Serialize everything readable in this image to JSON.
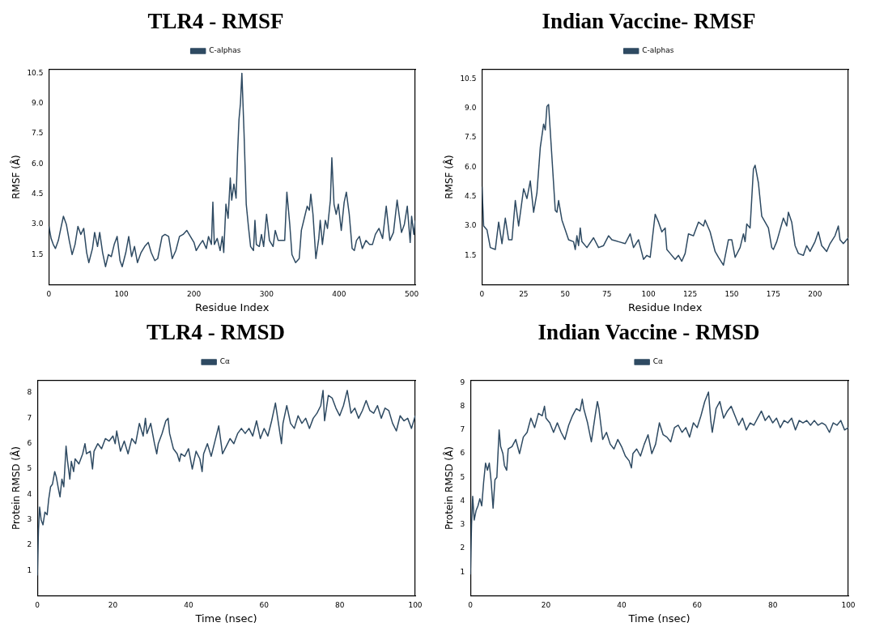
{
  "chart_data": [
    {
      "type": "line",
      "title": "TLR4 - RMSF",
      "xlabel": "Residue Index",
      "ylabel": "RMSF (Å)",
      "legend": "top",
      "grid": false,
      "xlim": [
        0,
        505
      ],
      "xticks": [
        0,
        100,
        200,
        300,
        400,
        500
      ],
      "ylim": [
        0,
        10.7
      ],
      "yticks": [
        1.5,
        {
          "value": 3,
          "label": "3.0"
        },
        4.5,
        {
          "value": 6,
          "label": "6.0"
        },
        7.5,
        {
          "value": 9,
          "label": "9.0"
        },
        10.5
      ],
      "x": [
        0,
        3,
        6,
        9,
        13,
        17,
        20,
        24,
        28,
        32,
        36,
        40,
        44,
        48,
        52,
        55,
        60,
        63,
        67,
        70,
        74,
        78,
        82,
        86,
        90,
        94,
        98,
        101,
        106,
        110,
        114,
        118,
        122,
        127,
        132,
        137,
        141,
        146,
        150,
        156,
        160,
        165,
        170,
        175,
        180,
        185,
        190,
        195,
        200,
        203,
        208,
        212,
        217,
        220,
        224,
        226,
        228,
        232,
        236,
        239,
        241,
        244,
        247,
        250,
        252,
        255,
        258,
        260,
        262,
        264,
        266,
        269,
        272,
        275,
        278,
        282,
        284,
        286,
        290,
        293,
        296,
        300,
        304,
        309,
        312,
        316,
        320,
        325,
        328,
        332,
        335,
        340,
        345,
        348,
        352,
        356,
        359,
        361,
        364,
        368,
        372,
        374,
        377,
        381,
        384,
        388,
        390,
        393,
        396,
        399,
        403,
        407,
        410,
        414,
        418,
        421,
        424,
        428,
        432,
        437,
        442,
        446,
        450,
        455,
        460,
        465,
        470,
        475,
        480,
        483,
        486,
        490,
        494,
        498,
        500,
        503,
        505
      ],
      "series": [
        {
          "name": "C-alphas",
          "color": "#2e4a62",
          "values": [
            2.9,
            2.3,
            2.0,
            1.8,
            2.2,
            2.9,
            3.4,
            3.0,
            2.2,
            1.5,
            2.0,
            2.9,
            2.5,
            2.8,
            1.6,
            1.1,
            1.8,
            2.6,
            1.9,
            2.6,
            1.6,
            0.9,
            1.5,
            1.4,
            2.0,
            2.4,
            1.2,
            0.9,
            1.6,
            2.4,
            1.4,
            1.9,
            1.1,
            1.6,
            1.9,
            2.1,
            1.6,
            1.2,
            1.3,
            2.4,
            2.5,
            2.4,
            1.3,
            1.7,
            2.4,
            2.5,
            2.7,
            2.4,
            2.1,
            1.7,
            2.0,
            2.2,
            1.8,
            2.4,
            2.0,
            4.1,
            2.0,
            2.3,
            1.7,
            2.4,
            1.6,
            4.0,
            3.3,
            5.3,
            4.2,
            5.0,
            4.3,
            6.5,
            8.2,
            9.0,
            10.5,
            7.5,
            4.0,
            2.9,
            1.9,
            1.7,
            3.2,
            2.0,
            1.9,
            2.5,
            1.9,
            3.5,
            2.2,
            1.9,
            2.7,
            2.2,
            2.2,
            2.2,
            4.6,
            3.0,
            1.5,
            1.1,
            1.3,
            2.7,
            3.3,
            3.9,
            3.7,
            4.5,
            3.5,
            1.3,
            2.3,
            3.2,
            2.0,
            3.2,
            2.8,
            4.2,
            6.3,
            4.0,
            3.5,
            4.0,
            2.7,
            4.1,
            4.6,
            3.5,
            1.8,
            1.7,
            2.2,
            2.4,
            1.8,
            2.2,
            2.0,
            2.0,
            2.5,
            2.8,
            2.3,
            3.9,
            2.2,
            2.6,
            4.2,
            3.4,
            2.6,
            3.0,
            3.9,
            2.1,
            3.4,
            2.5,
            3.2
          ]
        }
      ]
    },
    {
      "type": "line",
      "title": "Indian Vaccine- RMSF",
      "xlabel": "Residue Index",
      "ylabel": "RMSF (Å)",
      "legend": "top",
      "grid": false,
      "xlim": [
        0,
        220
      ],
      "xticks": [
        0,
        25,
        50,
        75,
        100,
        125,
        150,
        175,
        200
      ],
      "ylim": [
        0,
        11
      ],
      "yticks": [
        1.5,
        {
          "value": 3,
          "label": "3.0"
        },
        4.5,
        {
          "value": 6,
          "label": "6.0"
        },
        7.5,
        {
          "value": 9,
          "label": "9.0"
        },
        10.5
      ],
      "x": [
        0,
        1,
        3,
        5,
        8,
        10,
        12,
        14,
        16,
        18,
        20,
        22,
        25,
        27,
        29,
        31,
        33,
        35,
        37,
        38,
        39,
        40,
        42,
        44,
        45,
        46,
        48,
        50,
        52,
        55,
        56,
        57,
        58,
        59,
        60,
        63,
        67,
        70,
        73,
        76,
        78,
        82,
        86,
        89,
        91,
        94,
        97,
        99,
        101,
        104,
        106,
        108,
        110,
        111,
        113,
        116,
        118,
        120,
        122,
        124,
        127,
        130,
        133,
        134,
        137,
        140,
        142,
        145,
        148,
        150,
        152,
        155,
        157,
        158,
        159,
        161,
        163,
        164,
        166,
        168,
        172,
        174,
        175,
        177,
        181,
        183,
        184,
        186,
        188,
        190,
        193,
        195,
        197,
        200,
        202,
        204,
        207,
        209,
        212,
        214,
        215,
        217,
        220
      ],
      "series": [
        {
          "name": "C-alphas",
          "color": "#2e4a62",
          "values": [
            5.0,
            3.0,
            2.8,
            1.9,
            1.8,
            3.2,
            2.1,
            3.4,
            2.3,
            2.3,
            4.3,
            3.0,
            4.9,
            4.4,
            5.3,
            3.7,
            4.7,
            7.0,
            8.2,
            7.9,
            9.1,
            9.2,
            6.5,
            3.8,
            3.7,
            4.3,
            3.3,
            2.8,
            2.3,
            2.2,
            1.8,
            2.5,
            2.0,
            2.9,
            2.2,
            1.9,
            2.4,
            1.9,
            2.0,
            2.5,
            2.3,
            2.2,
            2.1,
            2.6,
            1.9,
            2.3,
            1.3,
            1.5,
            1.4,
            3.6,
            3.2,
            2.7,
            2.9,
            1.8,
            1.6,
            1.3,
            1.5,
            1.2,
            1.6,
            2.6,
            2.5,
            3.2,
            3.0,
            3.3,
            2.7,
            1.7,
            1.4,
            1.0,
            2.3,
            2.3,
            1.4,
            1.9,
            2.6,
            2.2,
            3.1,
            2.9,
            5.9,
            6.1,
            5.2,
            3.5,
            2.9,
            1.9,
            1.8,
            2.2,
            3.4,
            3.0,
            3.7,
            3.2,
            2.0,
            1.6,
            1.5,
            2.0,
            1.7,
            2.2,
            2.7,
            2.0,
            1.7,
            2.1,
            2.5,
            3.0,
            2.3,
            2.1,
            2.4
          ]
        }
      ]
    },
    {
      "type": "line",
      "title": "TLR4 - RMSD",
      "xlabel": "Time (nsec)",
      "ylabel": "Protein RMSD (Å)",
      "legend": "top",
      "grid": false,
      "xlim": [
        0,
        100
      ],
      "xticks": [
        0,
        20,
        40,
        60,
        80,
        100
      ],
      "ylim": [
        0,
        8.5
      ],
      "yticks": [
        1,
        2,
        3,
        4,
        5,
        6,
        7,
        8
      ],
      "x": [
        0,
        0.3,
        0.6,
        1,
        1.5,
        2,
        2.6,
        3,
        3.5,
        4,
        4.6,
        5,
        5.6,
        6,
        6.5,
        7,
        7.6,
        8,
        8.6,
        9,
        9.6,
        10,
        11,
        12,
        12.6,
        13,
        14,
        14.6,
        15,
        16,
        17,
        18,
        19,
        20,
        20.6,
        21,
        22,
        23,
        24,
        25,
        26,
        27,
        28,
        28.6,
        29,
        30,
        31,
        31.6,
        32,
        33,
        34,
        34.6,
        35,
        36,
        37,
        37.6,
        38,
        39,
        40,
        41,
        42,
        43,
        43.6,
        44,
        45,
        46,
        47,
        48,
        49,
        50,
        51,
        52,
        53,
        54,
        55,
        56,
        57,
        58,
        59,
        60,
        61,
        62,
        63,
        64,
        64.6,
        65,
        66,
        67,
        68,
        69,
        70,
        71,
        72,
        73,
        74,
        75,
        75.6,
        76,
        77,
        78,
        79,
        80,
        81,
        82,
        83,
        84,
        85,
        86,
        87,
        88,
        89,
        90,
        91,
        92,
        93,
        94,
        95,
        96,
        97,
        98,
        99,
        100
      ],
      "series": [
        {
          "name": "Cα",
          "color": "#2e4a62",
          "values": [
            0.8,
            2.6,
            3.5,
            3.0,
            2.8,
            3.3,
            3.2,
            3.8,
            4.3,
            4.4,
            4.9,
            4.7,
            4.2,
            3.9,
            4.6,
            4.3,
            5.9,
            5.3,
            4.6,
            5.3,
            4.9,
            5.4,
            5.2,
            5.6,
            6.0,
            5.6,
            5.7,
            5.0,
            5.7,
            6.0,
            5.8,
            6.2,
            6.1,
            6.3,
            6.0,
            6.5,
            5.7,
            6.1,
            5.6,
            6.2,
            6.0,
            6.8,
            6.3,
            7.0,
            6.4,
            6.8,
            6.0,
            5.6,
            6.0,
            6.4,
            6.9,
            7.0,
            6.4,
            5.8,
            5.6,
            5.3,
            5.6,
            5.5,
            5.8,
            5.0,
            5.7,
            5.4,
            4.9,
            5.6,
            6.0,
            5.5,
            6.1,
            6.7,
            5.6,
            5.9,
            6.2,
            6.0,
            6.4,
            6.6,
            6.4,
            6.6,
            6.3,
            6.9,
            6.2,
            6.6,
            6.3,
            6.9,
            7.6,
            6.6,
            6.0,
            6.8,
            7.5,
            6.8,
            6.6,
            7.1,
            6.8,
            7.0,
            6.6,
            7.0,
            7.2,
            7.5,
            8.1,
            6.9,
            7.9,
            7.8,
            7.4,
            7.1,
            7.5,
            8.1,
            7.2,
            7.4,
            7.0,
            7.3,
            7.7,
            7.3,
            7.2,
            7.5,
            7.0,
            7.4,
            7.3,
            6.8,
            6.5,
            7.1,
            6.9,
            7.0,
            6.6,
            7.1
          ]
        }
      ]
    },
    {
      "type": "line",
      "title": "Indian Vaccine - RMSD",
      "xlabel": "Time (nsec)",
      "ylabel": "Protein RMSD (Å)",
      "legend": "top",
      "grid": false,
      "xlim": [
        0,
        100
      ],
      "xticks": [
        0,
        20,
        40,
        60,
        80,
        100
      ],
      "ylim": [
        0,
        9.1
      ],
      "yticks": [
        1,
        2,
        3,
        4,
        5,
        6,
        7,
        8,
        9
      ],
      "x": [
        0,
        0.3,
        0.6,
        1,
        1.5,
        2,
        2.5,
        3,
        3.5,
        4,
        4.5,
        5,
        5.5,
        6,
        6.5,
        7,
        7.6,
        8,
        8.6,
        9,
        9.6,
        10,
        11,
        12,
        13,
        14,
        15,
        16,
        17,
        18,
        19,
        19.6,
        20,
        21,
        22,
        23,
        24,
        25,
        26,
        27,
        28,
        29,
        29.6,
        30,
        31,
        32,
        33,
        33.6,
        34,
        35,
        36,
        37,
        38,
        39,
        40,
        41,
        42,
        42.6,
        43,
        44,
        45,
        46,
        47,
        48,
        49,
        50,
        51,
        52,
        53,
        54,
        55,
        56,
        57,
        58,
        59,
        60,
        61,
        62,
        63,
        63.6,
        64,
        65,
        66,
        67,
        68,
        69,
        70,
        71,
        72,
        73,
        74,
        75,
        76,
        77,
        78,
        79,
        80,
        81,
        82,
        83,
        84,
        85,
        86,
        87,
        88,
        89,
        90,
        91,
        92,
        93,
        94,
        95,
        96,
        97,
        98,
        99,
        100
      ],
      "series": [
        {
          "name": "Cα",
          "color": "#2e4a62",
          "values": [
            0.9,
            3.0,
            4.2,
            3.2,
            3.6,
            3.8,
            4.1,
            3.8,
            4.8,
            5.6,
            5.3,
            5.6,
            4.8,
            3.7,
            4.9,
            5.0,
            7.0,
            6.3,
            6.0,
            5.5,
            5.3,
            6.2,
            6.3,
            6.6,
            6.0,
            6.7,
            6.9,
            7.5,
            7.1,
            7.7,
            7.6,
            8.0,
            7.5,
            7.3,
            6.9,
            7.3,
            6.9,
            6.6,
            7.2,
            7.6,
            7.9,
            7.8,
            8.3,
            7.9,
            7.3,
            6.5,
            7.6,
            8.2,
            7.9,
            6.6,
            6.9,
            6.4,
            6.2,
            6.6,
            6.3,
            5.9,
            5.7,
            5.4,
            6.0,
            6.2,
            5.9,
            6.4,
            6.8,
            6.0,
            6.4,
            7.3,
            6.8,
            6.7,
            6.5,
            7.1,
            7.2,
            6.9,
            7.1,
            6.7,
            7.3,
            7.1,
            7.6,
            8.2,
            8.6,
            7.4,
            6.9,
            7.9,
            8.2,
            7.5,
            7.8,
            8.0,
            7.6,
            7.2,
            7.5,
            7.0,
            7.3,
            7.2,
            7.5,
            7.8,
            7.4,
            7.6,
            7.3,
            7.5,
            7.1,
            7.4,
            7.3,
            7.5,
            7.0,
            7.4,
            7.3,
            7.4,
            7.2,
            7.4,
            7.2,
            7.3,
            7.2,
            6.9,
            7.3,
            7.2,
            7.4,
            7.0,
            7.1
          ]
        }
      ]
    }
  ]
}
